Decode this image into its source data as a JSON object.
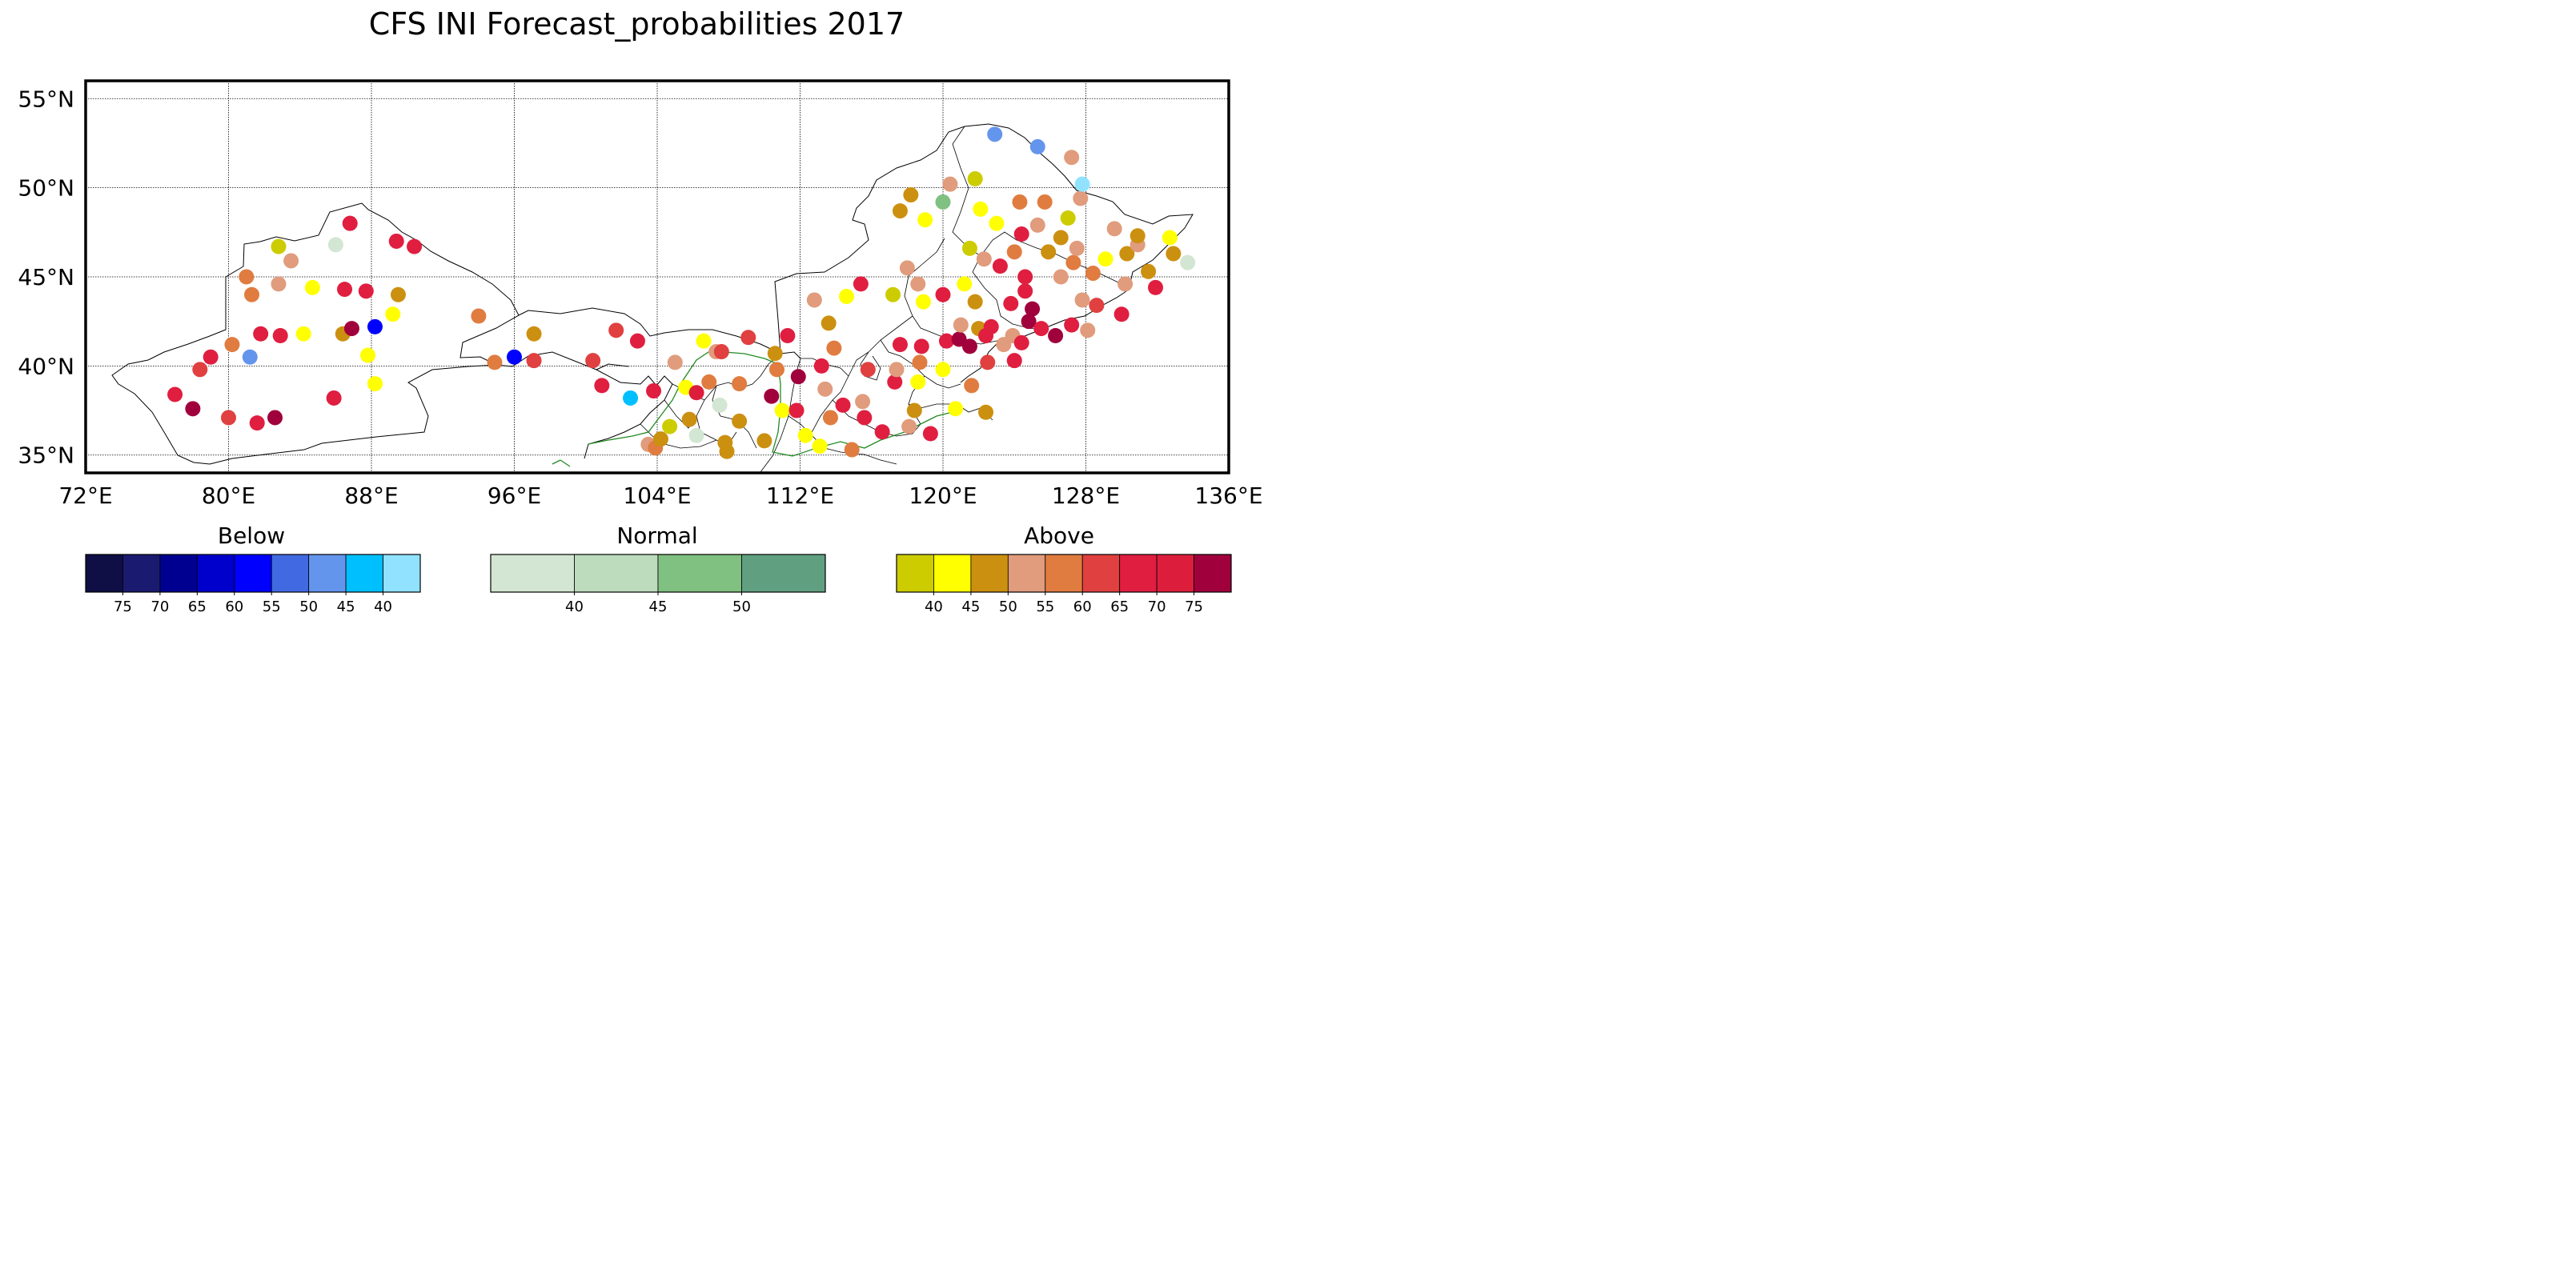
{
  "title": "CFS INI Forecast_probabilities 2017",
  "map": {
    "lon_range": [
      72,
      136
    ],
    "lat_range": [
      34,
      56
    ],
    "lon_ticks": [
      {
        "value": 72,
        "label": "72°E"
      },
      {
        "value": 80,
        "label": "80°E"
      },
      {
        "value": 88,
        "label": "88°E"
      },
      {
        "value": 96,
        "label": "96°E"
      },
      {
        "value": 104,
        "label": "104°E"
      },
      {
        "value": 112,
        "label": "112°E"
      },
      {
        "value": 120,
        "label": "120°E"
      },
      {
        "value": 128,
        "label": "128°E"
      },
      {
        "value": 136,
        "label": "136°E"
      }
    ],
    "lat_ticks": [
      {
        "value": 55,
        "label": "55°N"
      },
      {
        "value": 50,
        "label": "50°N"
      },
      {
        "value": 45,
        "label": "45°N"
      },
      {
        "value": 40,
        "label": "40°N"
      },
      {
        "value": 35,
        "label": "35°N"
      }
    ],
    "grid": true
  },
  "legend": {
    "below": {
      "title": "Below",
      "colors": [
        "#0f0f45",
        "#1a1a70",
        "#000090",
        "#0000cc",
        "#0000ff",
        "#4169e1",
        "#6495ed",
        "#00bfff",
        "#90e2ff"
      ],
      "labels": [
        "75",
        "70",
        "65",
        "60",
        "55",
        "50",
        "45",
        "40"
      ]
    },
    "normal": {
      "title": "Normal",
      "colors": [
        "#d3e6d3",
        "#bddbbd",
        "#80c080",
        "#60a080"
      ],
      "labels": [
        "40",
        "45",
        "50"
      ]
    },
    "above": {
      "title": "Above",
      "colors": [
        "#cccc00",
        "#ffff00",
        "#cc9010",
        "#e09c7c",
        "#e07c40",
        "#e04040",
        "#e01e40",
        "#dc1e3c",
        "#a0003c"
      ],
      "labels": [
        "40",
        "45",
        "50",
        "55",
        "60",
        "65",
        "70",
        "75"
      ]
    }
  },
  "stations": [
    {
      "lon": 77.0,
      "lat": 38.4,
      "color": "#e01e40"
    },
    {
      "lon": 78.0,
      "lat": 37.6,
      "color": "#a0003c"
    },
    {
      "lon": 78.4,
      "lat": 39.8,
      "color": "#e04040"
    },
    {
      "lon": 79.0,
      "lat": 40.5,
      "color": "#e01e40"
    },
    {
      "lon": 80.0,
      "lat": 37.1,
      "color": "#e04040"
    },
    {
      "lon": 80.2,
      "lat": 41.2,
      "color": "#e07c40"
    },
    {
      "lon": 81.2,
      "lat": 40.5,
      "color": "#6495ed"
    },
    {
      "lon": 81.0,
      "lat": 45.0,
      "color": "#e07c40"
    },
    {
      "lon": 81.3,
      "lat": 44.0,
      "color": "#e07c40"
    },
    {
      "lon": 81.8,
      "lat": 41.8,
      "color": "#e01e40"
    },
    {
      "lon": 81.6,
      "lat": 36.8,
      "color": "#e01e40"
    },
    {
      "lon": 82.6,
      "lat": 37.1,
      "color": "#a0003c"
    },
    {
      "lon": 82.8,
      "lat": 46.7,
      "color": "#cccc00"
    },
    {
      "lon": 83.5,
      "lat": 45.9,
      "color": "#e09c7c"
    },
    {
      "lon": 82.8,
      "lat": 44.6,
      "color": "#e09c7c"
    },
    {
      "lon": 82.9,
      "lat": 41.7,
      "color": "#e01e40"
    },
    {
      "lon": 84.2,
      "lat": 41.8,
      "color": "#ffff00"
    },
    {
      "lon": 84.7,
      "lat": 44.4,
      "color": "#ffff00"
    },
    {
      "lon": 86.0,
      "lat": 46.8,
      "color": "#d3e6d3"
    },
    {
      "lon": 86.8,
      "lat": 48.0,
      "color": "#e01e40"
    },
    {
      "lon": 86.5,
      "lat": 44.3,
      "color": "#e01e40"
    },
    {
      "lon": 86.4,
      "lat": 41.8,
      "color": "#cc9010"
    },
    {
      "lon": 86.9,
      "lat": 42.1,
      "color": "#a0003c"
    },
    {
      "lon": 85.9,
      "lat": 38.2,
      "color": "#e01e40"
    },
    {
      "lon": 87.7,
      "lat": 44.2,
      "color": "#e01e40"
    },
    {
      "lon": 87.8,
      "lat": 40.6,
      "color": "#ffff00"
    },
    {
      "lon": 88.2,
      "lat": 39.0,
      "color": "#ffff00"
    },
    {
      "lon": 88.2,
      "lat": 42.2,
      "color": "#0000ff"
    },
    {
      "lon": 89.2,
      "lat": 42.9,
      "color": "#ffff00"
    },
    {
      "lon": 89.5,
      "lat": 44.0,
      "color": "#cc9010"
    },
    {
      "lon": 89.4,
      "lat": 47.0,
      "color": "#e01e40"
    },
    {
      "lon": 90.4,
      "lat": 46.7,
      "color": "#e01e40"
    },
    {
      "lon": 94.0,
      "lat": 42.8,
      "color": "#e07c40"
    },
    {
      "lon": 94.9,
      "lat": 40.2,
      "color": "#e07c40"
    },
    {
      "lon": 96.0,
      "lat": 40.5,
      "color": "#0000ff"
    },
    {
      "lon": 97.1,
      "lat": 40.3,
      "color": "#e04040"
    },
    {
      "lon": 97.1,
      "lat": 41.8,
      "color": "#cc9010"
    },
    {
      "lon": 100.4,
      "lat": 40.3,
      "color": "#e04040"
    },
    {
      "lon": 100.9,
      "lat": 38.9,
      "color": "#e01e40"
    },
    {
      "lon": 101.7,
      "lat": 42.0,
      "color": "#e04040"
    },
    {
      "lon": 102.9,
      "lat": 41.4,
      "color": "#e01e40"
    },
    {
      "lon": 102.5,
      "lat": 38.2,
      "color": "#00bfff"
    },
    {
      "lon": 103.8,
      "lat": 38.6,
      "color": "#e01e40"
    },
    {
      "lon": 103.5,
      "lat": 35.6,
      "color": "#e09c7c"
    },
    {
      "lon": 103.9,
      "lat": 35.4,
      "color": "#e07c40"
    },
    {
      "lon": 104.2,
      "lat": 35.9,
      "color": "#cc9010"
    },
    {
      "lon": 104.7,
      "lat": 36.6,
      "color": "#cccc00"
    },
    {
      "lon": 105.0,
      "lat": 40.2,
      "color": "#e09c7c"
    },
    {
      "lon": 105.6,
      "lat": 38.8,
      "color": "#ffff00"
    },
    {
      "lon": 105.8,
      "lat": 37.0,
      "color": "#cc9010"
    },
    {
      "lon": 106.2,
      "lat": 38.5,
      "color": "#dc1e3c"
    },
    {
      "lon": 106.2,
      "lat": 36.1,
      "color": "#d3e6d3"
    },
    {
      "lon": 106.6,
      "lat": 41.4,
      "color": "#ffff00"
    },
    {
      "lon": 106.9,
      "lat": 39.1,
      "color": "#e07c40"
    },
    {
      "lon": 107.3,
      "lat": 40.8,
      "color": "#e09c7c"
    },
    {
      "lon": 107.5,
      "lat": 37.8,
      "color": "#d3e6d3"
    },
    {
      "lon": 107.6,
      "lat": 40.8,
      "color": "#e04040"
    },
    {
      "lon": 107.8,
      "lat": 35.7,
      "color": "#cc9010"
    },
    {
      "lon": 107.9,
      "lat": 35.2,
      "color": "#cc9010"
    },
    {
      "lon": 108.6,
      "lat": 39.0,
      "color": "#e07c40"
    },
    {
      "lon": 108.6,
      "lat": 36.9,
      "color": "#cc9010"
    },
    {
      "lon": 109.1,
      "lat": 41.6,
      "color": "#e04040"
    },
    {
      "lon": 110.0,
      "lat": 35.8,
      "color": "#cc9010"
    },
    {
      "lon": 110.4,
      "lat": 38.3,
      "color": "#a0003c"
    },
    {
      "lon": 110.6,
      "lat": 40.7,
      "color": "#cc9010"
    },
    {
      "lon": 110.7,
      "lat": 39.8,
      "color": "#e07c40"
    },
    {
      "lon": 111.0,
      "lat": 37.5,
      "color": "#ffff00"
    },
    {
      "lon": 111.3,
      "lat": 41.7,
      "color": "#e01e40"
    },
    {
      "lon": 111.8,
      "lat": 37.5,
      "color": "#e01e40"
    },
    {
      "lon": 111.9,
      "lat": 39.4,
      "color": "#a0003c"
    },
    {
      "lon": 112.3,
      "lat": 36.1,
      "color": "#ffff00"
    },
    {
      "lon": 112.8,
      "lat": 43.7,
      "color": "#e09c7c"
    },
    {
      "lon": 113.1,
      "lat": 35.5,
      "color": "#ffff00"
    },
    {
      "lon": 113.2,
      "lat": 40.0,
      "color": "#e01e40"
    },
    {
      "lon": 113.4,
      "lat": 38.7,
      "color": "#e09c7c"
    },
    {
      "lon": 113.6,
      "lat": 42.4,
      "color": "#cc9010"
    },
    {
      "lon": 113.7,
      "lat": 37.1,
      "color": "#e07c40"
    },
    {
      "lon": 113.9,
      "lat": 41.0,
      "color": "#e07c40"
    },
    {
      "lon": 114.4,
      "lat": 37.8,
      "color": "#e01e40"
    },
    {
      "lon": 114.6,
      "lat": 43.9,
      "color": "#ffff00"
    },
    {
      "lon": 114.9,
      "lat": 35.3,
      "color": "#e07c40"
    },
    {
      "lon": 115.4,
      "lat": 44.6,
      "color": "#e01e40"
    },
    {
      "lon": 115.5,
      "lat": 38.0,
      "color": "#e09c7c"
    },
    {
      "lon": 115.6,
      "lat": 37.1,
      "color": "#e01e40"
    },
    {
      "lon": 115.8,
      "lat": 39.8,
      "color": "#e04040"
    },
    {
      "lon": 116.6,
      "lat": 36.3,
      "color": "#e01e40"
    },
    {
      "lon": 117.2,
      "lat": 44.0,
      "color": "#cccc00"
    },
    {
      "lon": 117.3,
      "lat": 39.1,
      "color": "#e01e40"
    },
    {
      "lon": 117.4,
      "lat": 39.8,
      "color": "#e09c7c"
    },
    {
      "lon": 117.6,
      "lat": 41.2,
      "color": "#e01e40"
    },
    {
      "lon": 118.0,
      "lat": 45.5,
      "color": "#e09c7c"
    },
    {
      "lon": 118.1,
      "lat": 36.6,
      "color": "#e09c7c"
    },
    {
      "lon": 118.2,
      "lat": 49.6,
      "color": "#cc9010"
    },
    {
      "lon": 117.6,
      "lat": 48.7,
      "color": "#cc9010"
    },
    {
      "lon": 118.4,
      "lat": 37.5,
      "color": "#cc9010"
    },
    {
      "lon": 118.6,
      "lat": 44.6,
      "color": "#e09c7c"
    },
    {
      "lon": 118.6,
      "lat": 39.1,
      "color": "#ffff00"
    },
    {
      "lon": 118.7,
      "lat": 40.2,
      "color": "#e07c40"
    },
    {
      "lon": 118.8,
      "lat": 41.1,
      "color": "#e01e40"
    },
    {
      "lon": 118.9,
      "lat": 43.6,
      "color": "#ffff00"
    },
    {
      "lon": 119.0,
      "lat": 48.2,
      "color": "#ffff00"
    },
    {
      "lon": 119.3,
      "lat": 36.2,
      "color": "#e01e40"
    },
    {
      "lon": 120.0,
      "lat": 44.0,
      "color": "#e01e40"
    },
    {
      "lon": 120.0,
      "lat": 39.8,
      "color": "#ffff00"
    },
    {
      "lon": 120.0,
      "lat": 49.2,
      "color": "#80c080"
    },
    {
      "lon": 120.2,
      "lat": 41.4,
      "color": "#e01e40"
    },
    {
      "lon": 120.4,
      "lat": 50.2,
      "color": "#e09c7c"
    },
    {
      "lon": 120.7,
      "lat": 37.6,
      "color": "#ffff00"
    },
    {
      "lon": 120.9,
      "lat": 41.5,
      "color": "#a0003c"
    },
    {
      "lon": 121.0,
      "lat": 42.3,
      "color": "#e09c7c"
    },
    {
      "lon": 121.2,
      "lat": 44.6,
      "color": "#ffff00"
    },
    {
      "lon": 121.5,
      "lat": 46.6,
      "color": "#cccc00"
    },
    {
      "lon": 121.5,
      "lat": 41.1,
      "color": "#a0003c"
    },
    {
      "lon": 121.8,
      "lat": 43.6,
      "color": "#cc9010"
    },
    {
      "lon": 121.6,
      "lat": 38.9,
      "color": "#e07c40"
    },
    {
      "lon": 121.8,
      "lat": 50.5,
      "color": "#cccc00"
    },
    {
      "lon": 122.0,
      "lat": 42.1,
      "color": "#cc9010"
    },
    {
      "lon": 122.1,
      "lat": 48.8,
      "color": "#ffff00"
    },
    {
      "lon": 122.3,
      "lat": 46.0,
      "color": "#e09c7c"
    },
    {
      "lon": 122.4,
      "lat": 41.7,
      "color": "#e01e40"
    },
    {
      "lon": 122.5,
      "lat": 40.2,
      "color": "#e04040"
    },
    {
      "lon": 122.4,
      "lat": 37.4,
      "color": "#cc9010"
    },
    {
      "lon": 122.7,
      "lat": 42.2,
      "color": "#e01e40"
    },
    {
      "lon": 123.0,
      "lat": 48.0,
      "color": "#ffff00"
    },
    {
      "lon": 123.2,
      "lat": 45.6,
      "color": "#e01e40"
    },
    {
      "lon": 122.9,
      "lat": 53.0,
      "color": "#6495ed"
    },
    {
      "lon": 123.4,
      "lat": 41.2,
      "color": "#e09c7c"
    },
    {
      "lon": 123.8,
      "lat": 43.5,
      "color": "#e01e40"
    },
    {
      "lon": 123.9,
      "lat": 41.7,
      "color": "#e09c7c"
    },
    {
      "lon": 124.0,
      "lat": 40.3,
      "color": "#e01e40"
    },
    {
      "lon": 124.0,
      "lat": 46.4,
      "color": "#e07c40"
    },
    {
      "lon": 124.3,
      "lat": 49.2,
      "color": "#e07c40"
    },
    {
      "lon": 124.4,
      "lat": 47.4,
      "color": "#e01e40"
    },
    {
      "lon": 124.4,
      "lat": 41.3,
      "color": "#e01e40"
    },
    {
      "lon": 124.6,
      "lat": 45.0,
      "color": "#e01e40"
    },
    {
      "lon": 124.6,
      "lat": 44.2,
      "color": "#e01e40"
    },
    {
      "lon": 124.8,
      "lat": 42.5,
      "color": "#a0003c"
    },
    {
      "lon": 125.0,
      "lat": 43.2,
      "color": "#a0003c"
    },
    {
      "lon": 125.3,
      "lat": 47.9,
      "color": "#e09c7c"
    },
    {
      "lon": 125.3,
      "lat": 52.3,
      "color": "#6495ed"
    },
    {
      "lon": 125.5,
      "lat": 42.1,
      "color": "#e01e40"
    },
    {
      "lon": 125.7,
      "lat": 49.2,
      "color": "#e07c40"
    },
    {
      "lon": 125.9,
      "lat": 46.4,
      "color": "#cc9010"
    },
    {
      "lon": 126.3,
      "lat": 41.7,
      "color": "#a0003c"
    },
    {
      "lon": 126.6,
      "lat": 47.2,
      "color": "#cc9010"
    },
    {
      "lon": 126.6,
      "lat": 45.0,
      "color": "#e09c7c"
    },
    {
      "lon": 127.0,
      "lat": 48.3,
      "color": "#cccc00"
    },
    {
      "lon": 127.2,
      "lat": 42.3,
      "color": "#e01e40"
    },
    {
      "lon": 127.2,
      "lat": 51.7,
      "color": "#e09c7c"
    },
    {
      "lon": 127.3,
      "lat": 45.8,
      "color": "#e07c40"
    },
    {
      "lon": 127.5,
      "lat": 46.6,
      "color": "#e09c7c"
    },
    {
      "lon": 127.7,
      "lat": 49.4,
      "color": "#e09c7c"
    },
    {
      "lon": 127.8,
      "lat": 50.2,
      "color": "#90e2ff"
    },
    {
      "lon": 127.8,
      "lat": 43.7,
      "color": "#e09c7c"
    },
    {
      "lon": 128.1,
      "lat": 42.0,
      "color": "#e09c7c"
    },
    {
      "lon": 128.4,
      "lat": 45.2,
      "color": "#e07c40"
    },
    {
      "lon": 128.6,
      "lat": 43.4,
      "color": "#e04040"
    },
    {
      "lon": 129.1,
      "lat": 46.0,
      "color": "#ffff00"
    },
    {
      "lon": 129.6,
      "lat": 47.7,
      "color": "#e09c7c"
    },
    {
      "lon": 130.0,
      "lat": 42.9,
      "color": "#e01e40"
    },
    {
      "lon": 130.2,
      "lat": 44.6,
      "color": "#e09c7c"
    },
    {
      "lon": 130.3,
      "lat": 46.3,
      "color": "#cc9010"
    },
    {
      "lon": 130.9,
      "lat": 46.8,
      "color": "#e09c7c"
    },
    {
      "lon": 130.9,
      "lat": 47.3,
      "color": "#cc9010"
    },
    {
      "lon": 131.5,
      "lat": 45.3,
      "color": "#cc9010"
    },
    {
      "lon": 131.9,
      "lat": 44.4,
      "color": "#e01e40"
    },
    {
      "lon": 132.7,
      "lat": 47.2,
      "color": "#ffff00"
    },
    {
      "lon": 132.9,
      "lat": 46.3,
      "color": "#cc9010"
    },
    {
      "lon": 133.7,
      "lat": 45.8,
      "color": "#d3e6d3"
    }
  ]
}
